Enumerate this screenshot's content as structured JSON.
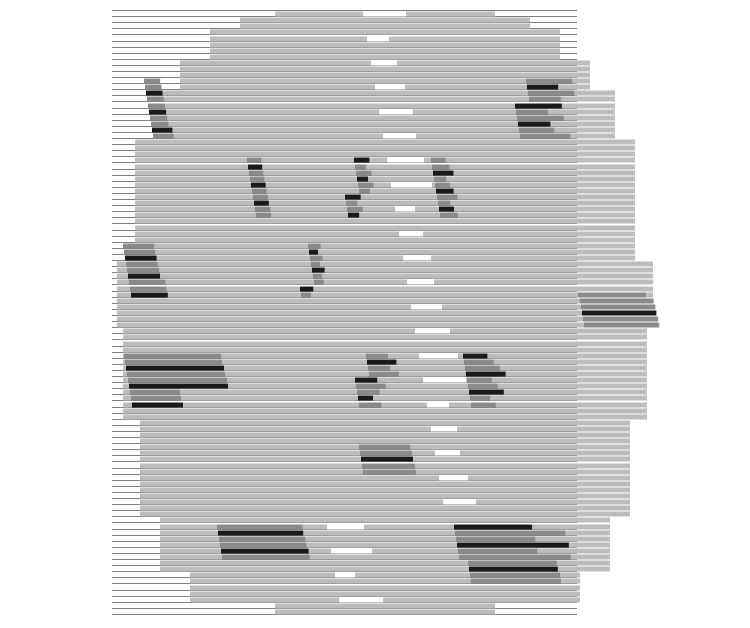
{
  "image": {
    "description_hidden": "",
    "colors": {
      "background": "#ffffff",
      "rule": "#555555",
      "light_tone": "#bcbcbc",
      "mid_tone": "#8a8a8a",
      "dark_tone": "#1a1a1a"
    }
  }
}
